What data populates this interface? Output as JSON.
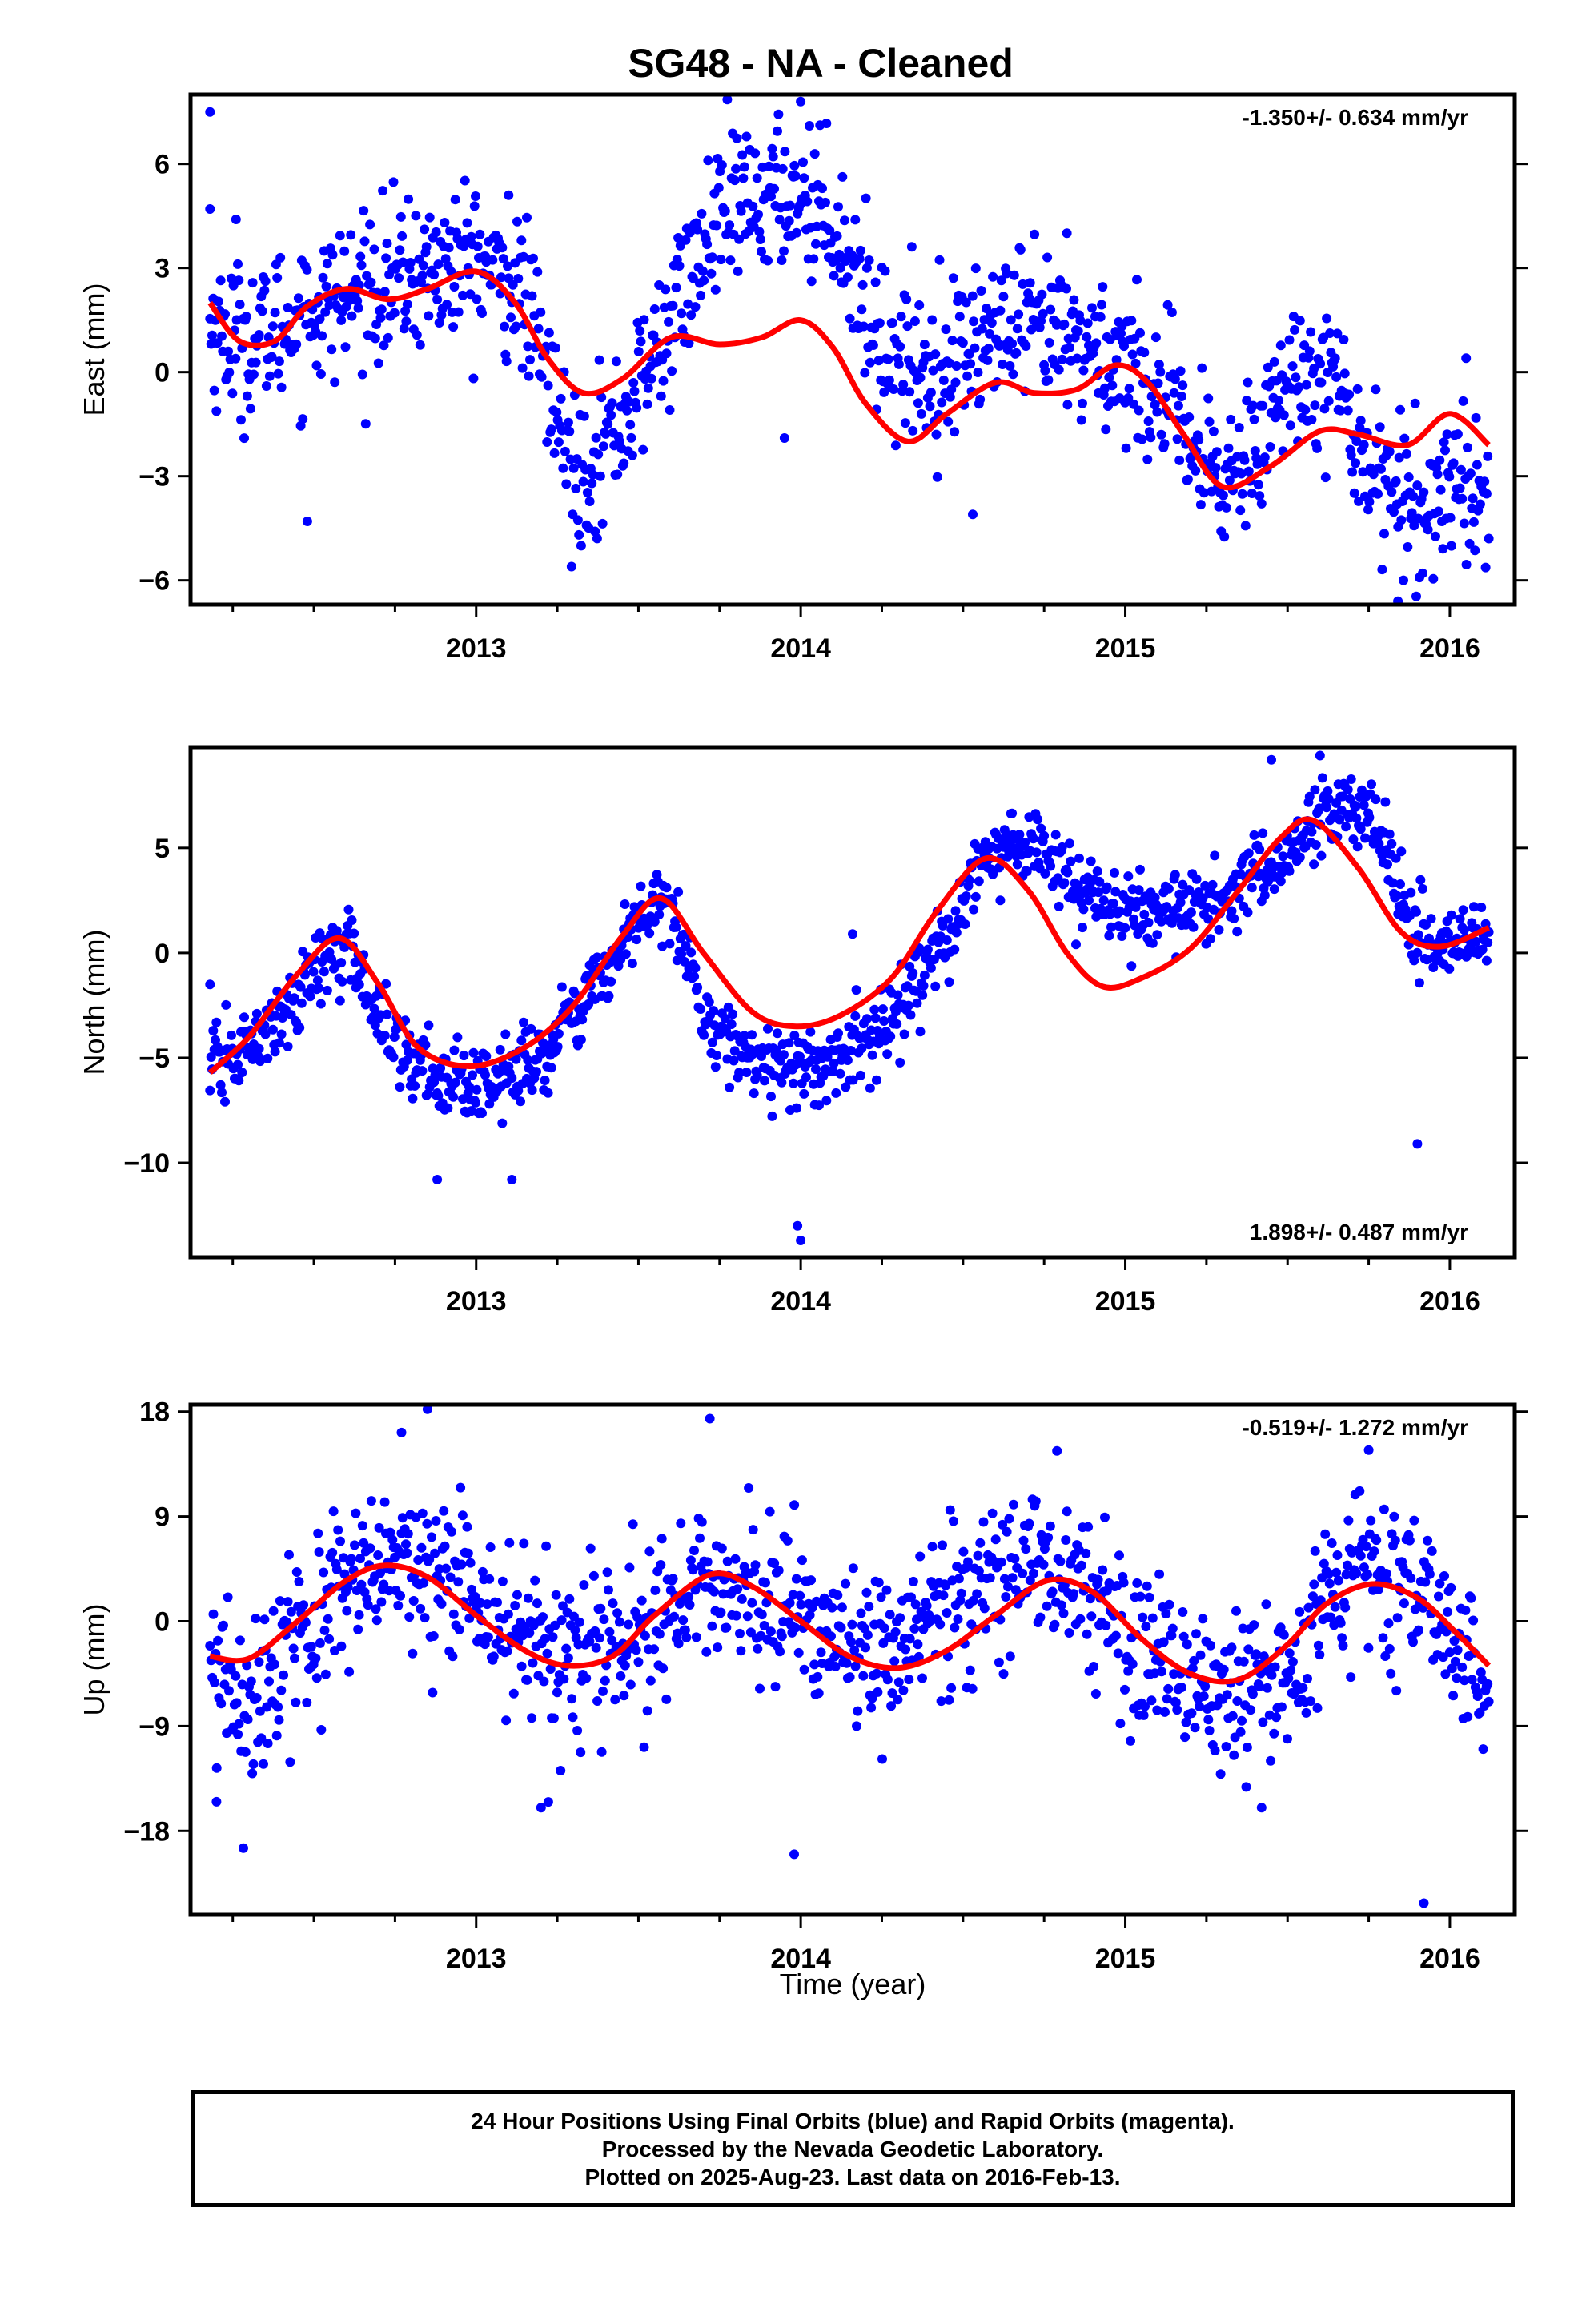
{
  "title": "SG48  - NA - Cleaned",
  "xlabel": "Time (year)",
  "colors": {
    "points": "#0000ff",
    "model": "#ff0000",
    "frame": "#000000"
  },
  "footer": {
    "line1": "24 Hour Positions Using Final Orbits (blue) and Rapid Orbits (magenta).",
    "line2": "Processed by the Nevada Geodetic Laboratory.",
    "line3": "Plotted on 2025-Aug-23. Last data on 2016-Feb-13."
  },
  "chart_data": [
    {
      "type": "scatter",
      "ylabel": "East (mm)",
      "rate_text": "-1.350+/- 0.634 mm/yr",
      "rate_position": "top-right",
      "xlim": [
        2012.12,
        2016.2
      ],
      "ylim": [
        -6.7,
        8.0
      ],
      "xticks": [
        2013,
        2014,
        2015,
        2016
      ],
      "yticks": [
        -6,
        -3,
        0,
        3,
        6
      ],
      "data_range": [
        2012.18,
        2016.12
      ],
      "point_count": 1200,
      "trend_anchors": {
        "x": [
          2012.18,
          2012.3,
          2012.5,
          2012.7,
          2012.85,
          2013.0,
          2013.15,
          2013.3,
          2013.45,
          2013.6,
          2013.75,
          2013.9,
          2014.0,
          2014.1,
          2014.25,
          2014.4,
          2014.55,
          2014.7,
          2014.85,
          2015.0,
          2015.1,
          2015.2,
          2015.3,
          2015.45,
          2015.6,
          2015.75,
          2015.9,
          2016.0,
          2016.12
        ],
        "y": [
          1.3,
          0.8,
          1.8,
          2.5,
          2.9,
          3.2,
          2.2,
          -3.0,
          -1.5,
          1.5,
          4.5,
          5.0,
          5.2,
          4.5,
          0.8,
          0.0,
          1.0,
          1.2,
          0.8,
          0.3,
          -0.5,
          -2.2,
          -3.4,
          -1.0,
          0.5,
          -2.5,
          -4.2,
          -3.0,
          -3.5
        ]
      },
      "scatter_sigma": 1.1,
      "outliers": [
        {
          "x": 2012.18,
          "y": 7.5
        },
        {
          "x": 2012.18,
          "y": 4.7
        },
        {
          "x": 2012.26,
          "y": 4.4
        },
        {
          "x": 2012.48,
          "y": -4.3
        },
        {
          "x": 2013.1,
          "y": 5.1
        },
        {
          "x": 2013.95,
          "y": -1.9
        },
        {
          "x": 2014.0,
          "y": 7.8
        },
        {
          "x": 2014.53,
          "y": -4.1
        },
        {
          "x": 2014.82,
          "y": 4.0
        },
        {
          "x": 2015.84,
          "y": -6.6
        },
        {
          "x": 2016.05,
          "y": 0.4
        }
      ],
      "model": {
        "x": [
          2012.18,
          2012.27,
          2012.38,
          2012.48,
          2012.6,
          2012.73,
          2012.85,
          2013.0,
          2013.12,
          2013.22,
          2013.33,
          2013.45,
          2013.6,
          2013.75,
          2013.88,
          2014.0,
          2014.1,
          2014.2,
          2014.33,
          2014.45,
          2014.6,
          2014.72,
          2014.85,
          2014.97,
          2015.07,
          2015.18,
          2015.3,
          2015.45,
          2015.6,
          2015.72,
          2015.87,
          2016.0,
          2016.12
        ],
        "y": [
          2.0,
          0.9,
          0.9,
          1.9,
          2.4,
          2.1,
          2.4,
          2.9,
          2.0,
          0.4,
          -0.6,
          -0.2,
          1.0,
          0.8,
          1.0,
          1.5,
          0.7,
          -0.9,
          -2.0,
          -1.2,
          -0.3,
          -0.6,
          -0.5,
          0.2,
          -0.3,
          -1.8,
          -3.3,
          -2.7,
          -1.7,
          -1.8,
          -2.1,
          -1.2,
          -2.1
        ]
      }
    },
    {
      "type": "scatter",
      "ylabel": "North (mm)",
      "rate_text": "1.898+/- 0.487 mm/yr",
      "rate_position": "bottom-right",
      "xlim": [
        2012.12,
        2016.2
      ],
      "ylim": [
        -14.5,
        9.8
      ],
      "xticks": [
        2013,
        2014,
        2015,
        2016
      ],
      "yticks": [
        -10,
        -5,
        0,
        5
      ],
      "data_range": [
        2012.18,
        2016.12
      ],
      "point_count": 1200,
      "trend_anchors": {
        "x": [
          2012.18,
          2012.35,
          2012.5,
          2012.6,
          2012.75,
          2012.9,
          2013.05,
          2013.2,
          2013.35,
          2013.5,
          2013.6,
          2013.7,
          2013.85,
          2014.0,
          2014.15,
          2014.3,
          2014.45,
          2014.55,
          2014.7,
          2014.85,
          2015.0,
          2015.15,
          2015.3,
          2015.45,
          2015.6,
          2015.75,
          2015.9,
          2016.0,
          2016.12
        ],
        "y": [
          -5.5,
          -4.0,
          -1.0,
          0.5,
          -4.5,
          -6.0,
          -6.3,
          -5.0,
          -2.0,
          1.5,
          2.5,
          -3.0,
          -5.0,
          -5.5,
          -5.0,
          -3.0,
          0.5,
          4.5,
          5.5,
          3.0,
          1.8,
          2.0,
          2.5,
          4.0,
          6.5,
          6.8,
          1.0,
          0.0,
          1.0
        ]
      },
      "scatter_sigma": 0.9,
      "outliers": [
        {
          "x": 2012.18,
          "y": -1.5
        },
        {
          "x": 2012.88,
          "y": -10.8
        },
        {
          "x": 2013.11,
          "y": -10.8
        },
        {
          "x": 2013.99,
          "y": -13.0
        },
        {
          "x": 2014.0,
          "y": -13.7
        },
        {
          "x": 2014.16,
          "y": 0.9
        },
        {
          "x": 2015.45,
          "y": 9.2
        },
        {
          "x": 2015.6,
          "y": 9.4
        },
        {
          "x": 2015.9,
          "y": -9.1
        }
      ],
      "model": {
        "x": [
          2012.18,
          2012.3,
          2012.45,
          2012.58,
          2012.7,
          2012.82,
          2012.98,
          2013.15,
          2013.3,
          2013.45,
          2013.57,
          2013.7,
          2013.85,
          2013.98,
          2014.12,
          2014.28,
          2014.42,
          2014.57,
          2014.7,
          2014.82,
          2014.93,
          2015.05,
          2015.2,
          2015.35,
          2015.48,
          2015.58,
          2015.72,
          2015.85,
          2015.97,
          2016.12
        ],
        "y": [
          -5.7,
          -4.0,
          -1.0,
          0.7,
          -1.5,
          -4.5,
          -5.4,
          -4.5,
          -2.5,
          0.8,
          2.6,
          0.0,
          -2.8,
          -3.5,
          -3.0,
          -1.2,
          2.0,
          4.5,
          3.0,
          0.0,
          -1.6,
          -1.2,
          0.2,
          3.0,
          5.5,
          6.3,
          4.0,
          1.0,
          0.3,
          1.2
        ]
      }
    },
    {
      "type": "scatter",
      "ylabel": "Up (mm)",
      "rate_text": "-0.519+/- 1.272 mm/yr",
      "rate_position": "top-right",
      "xlim": [
        2012.12,
        2016.2
      ],
      "ylim": [
        -25.2,
        18.6
      ],
      "xticks": [
        2013,
        2014,
        2015,
        2016
      ],
      "yticks": [
        -18,
        -9,
        0,
        9,
        18
      ],
      "data_range": [
        2012.18,
        2016.12
      ],
      "point_count": 1150,
      "trend_anchors": {
        "x": [
          2012.18,
          2012.3,
          2012.5,
          2012.75,
          2013.0,
          2013.25,
          2013.5,
          2013.75,
          2014.0,
          2014.25,
          2014.5,
          2014.75,
          2015.0,
          2015.25,
          2015.5,
          2015.75,
          2016.0,
          2016.12
        ],
        "y": [
          -5.0,
          -7.0,
          0.0,
          5.0,
          2.0,
          -4.0,
          -2.0,
          4.0,
          0.0,
          -3.0,
          2.0,
          6.0,
          0.0,
          -7.0,
          -5.0,
          5.0,
          -1.0,
          -5.0
        ]
      },
      "scatter_sigma": 3.6,
      "outliers": [
        {
          "x": 2012.85,
          "y": 18.2
        },
        {
          "x": 2012.77,
          "y": 16.2
        },
        {
          "x": 2013.72,
          "y": 17.4
        },
        {
          "x": 2013.98,
          "y": -20.0
        },
        {
          "x": 2013.2,
          "y": -16.0
        },
        {
          "x": 2015.42,
          "y": -16.0
        },
        {
          "x": 2015.92,
          "y": -24.2
        },
        {
          "x": 2015.75,
          "y": 14.7
        },
        {
          "x": 2012.2,
          "y": -15.5
        }
      ],
      "model": {
        "x": [
          2012.18,
          2012.3,
          2012.45,
          2012.6,
          2012.72,
          2012.85,
          2013.0,
          2013.15,
          2013.28,
          2013.42,
          2013.55,
          2013.72,
          2013.85,
          2014.0,
          2014.15,
          2014.3,
          2014.45,
          2014.6,
          2014.76,
          2014.9,
          2015.05,
          2015.2,
          2015.35,
          2015.5,
          2015.62,
          2015.76,
          2015.9,
          2016.02,
          2016.12
        ],
        "y": [
          -3.0,
          -3.2,
          0.0,
          3.5,
          4.8,
          3.8,
          0.5,
          -2.5,
          -3.8,
          -3.0,
          0.5,
          4.0,
          3.0,
          0.0,
          -3.0,
          -4.0,
          -2.5,
          0.5,
          3.5,
          2.5,
          -1.5,
          -4.5,
          -5.0,
          -2.0,
          1.5,
          3.2,
          2.0,
          -1.0,
          -3.8
        ]
      }
    }
  ]
}
